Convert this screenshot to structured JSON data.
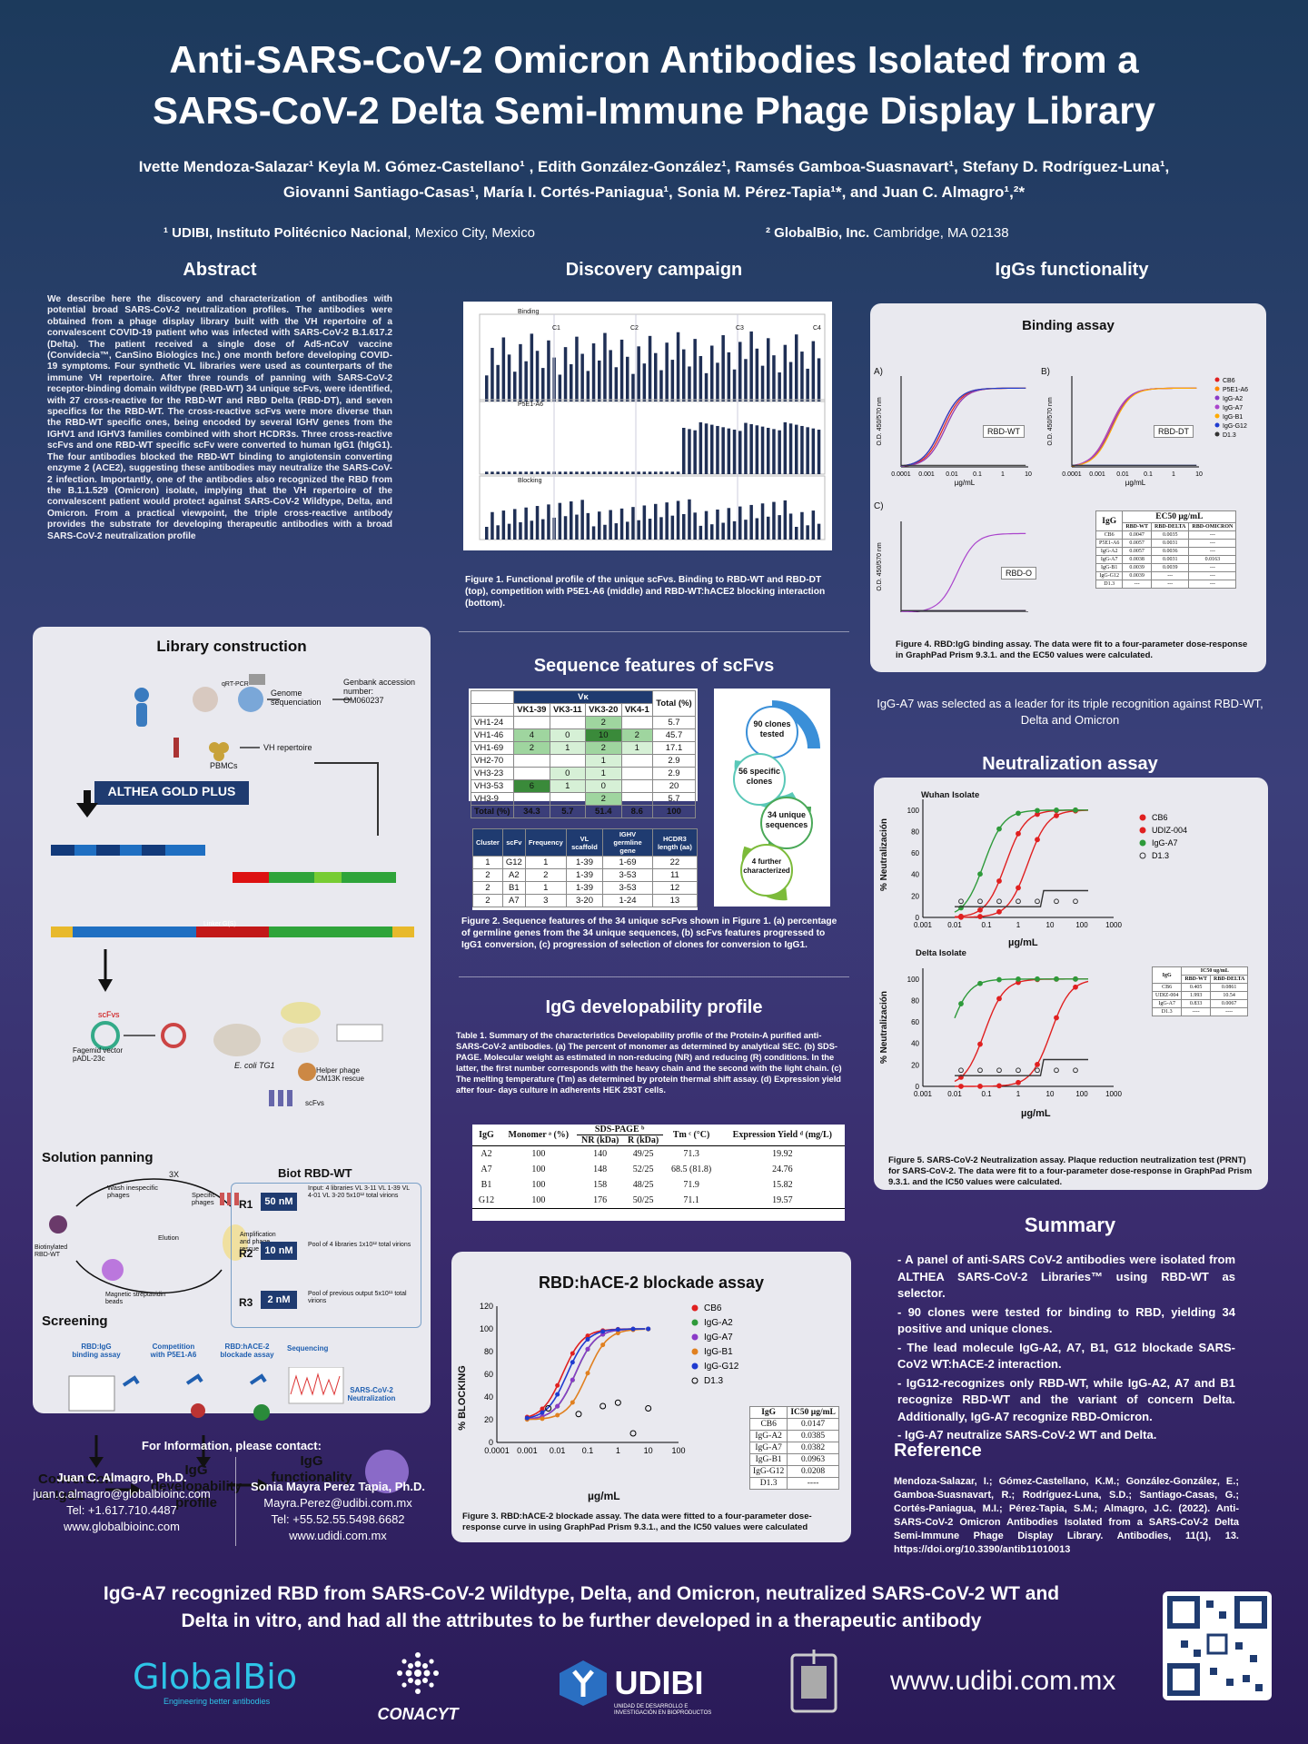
{
  "poster": {
    "title_line1": "Anti-SARS-CoV-2 Omicron Antibodies Isolated from a",
    "title_line2": "SARS-CoV-2 Delta Semi-Immune Phage Display Library",
    "authors_line1": "Ivette Mendoza-Salazar¹ Keyla M. Gómez-Castellano¹ , Edith González-González¹, Ramsés Gamboa-Suasnavart¹, Stefany D. Rodríguez-Luna¹,",
    "authors_line2": "Giovanni Santiago-Casas¹, María I. Cortés-Paniagua¹, Sonia M. Pérez-Tapia¹*, and Juan C. Almagro¹,²*",
    "affil1_bold": "¹ UDIBI, Instituto Politécnico Nacional",
    "affil1_rest": ", Mexico City, Mexico",
    "affil2_bold": "² GlobalBio, Inc.",
    "affil2_rest": " Cambridge, MA 02138"
  },
  "abstract": {
    "heading": "Abstract",
    "text": "We describe here the discovery and characterization of antibodies with potential broad SARS-CoV-2 neutralization profiles. The antibodies were obtained from a phage display library built with the VH repertoire of a convalescent COVID-19 patient who was infected with SARS-CoV-2 B.1.617.2 (Delta). The patient received a single dose of Ad5-nCoV vaccine (Convidecia™, CanSino Biologics Inc.) one month before developing COVID-19 symptoms. Four synthetic VL libraries were used as counterparts of the immune VH repertoire. After three rounds of panning with SARS-CoV-2 receptor-binding domain wildtype (RBD-WT) 34 unique scFvs, were identified, with 27 cross-reactive for the RBD-WT and RBD Delta (RBD-DT), and seven specifics for the RBD-WT. The cross-reactive scFvs were more diverse than the RBD-WT specific ones, being encoded by several IGHV genes from the IGHV1 and IGHV3 families combined with short HCDR3s. Three cross-reactive scFvs and one RBD-WT specific scFv were converted to human IgG1 (hIgG1). The four antibodies blocked the RBD-WT binding to angiotensin converting enzyme 2 (ACE2), suggesting these antibodies may neutralize the SARS-CoV-2 infection. Importantly, one of the antibodies also recognized the RBD from the B.1.1.529 (Omicron) isolate, implying that the VH repertoire of the convalescent patient would protect against SARS-CoV-2 Wildtype, Delta, and Omicron. From a practical viewpoint, the triple cross-reactive antibody provides the substrate for developing therapeutic antibodies with a broad SARS-CoV-2 neutralization profile"
  },
  "library": {
    "heading": "Library construction",
    "genome_seq": "Genome sequenciation",
    "genbank": "Genbank accession number: OM060237",
    "pbmcs": "PBMCs",
    "qrt": "qRT-PCR",
    "vh_rep": "VH repertoire",
    "althea": "ALTHEA GOLD PLUS",
    "linker": "Linker G(S)",
    "scfvs": "scFvs",
    "fagemid": "Fagemid vector pADL-23c",
    "ecoli": "E. coli TG1",
    "helper": "Helper phage CM13K rescue",
    "scfvs_end": "scFvs",
    "panning_heading": "Solution panning",
    "times": "3X",
    "wash": "Wash inespecific phages",
    "elution": "Elution",
    "specific": "Specific phages",
    "amplification": "Amplification and phage rescue",
    "biotin": "Biotinylated RBD-WT",
    "beads": "Magnetic streptavidin beads",
    "biot_heading": "Biot RBD-WT",
    "rounds": [
      {
        "r": "R1",
        "conc": "50 nM",
        "note": "Input: 4 libraries VL 3-11 VL 1-39 VL 4-01 VL 3-20 5x10¹² total virions"
      },
      {
        "r": "R2",
        "conc": "10 nM",
        "note": "Pool of 4 libraries 1x10¹² total virions"
      },
      {
        "r": "R3",
        "conc": "2 nM",
        "note": "Pool of previous output 5x10¹¹ total virions"
      }
    ],
    "screening_heading": "Screening",
    "screen_items": [
      "RBD:IgG binding assay",
      "Competition with P5E1-A6",
      "RBD:hACE-2 blockade assay",
      "Sequencing",
      "SARS-CoV-2 Neutralization"
    ],
    "conversion": "Conversion to IgG1",
    "developability": "IgG developability profile",
    "functionality": "IgG functionality"
  },
  "contact": {
    "heading": "For Information, please contact:",
    "p1_name": "Juan C. Almagro, Ph.D.",
    "p1_email": "juan.c.almagro@globalbioinc.com",
    "p1_tel": "Tel: +1.617.710.4487",
    "p1_web": "www.globalbioinc.com",
    "p2_name": "Sonia Mayra Perez Tapia, Ph.D.",
    "p2_email": "Mayra.Perez@udibi.com.mx",
    "p2_tel": "Tel: +55.52.55.5498.6682",
    "p2_web": "www.udidi.com.mx"
  },
  "discovery": {
    "heading": "Discovery campaign",
    "panels": [
      "Binding",
      "P5E1-A6",
      "Blocking"
    ],
    "groups": [
      "C1",
      "C2",
      "C3",
      "C4"
    ],
    "caption": "Figure 1. Functional profile of the unique scFvs. Binding to RBD-WT and RBD-DT (top), competition with P5E1-A6 (middle) and RBD-WT:hACE2 blocking interaction (bottom)."
  },
  "sequence": {
    "heading": "Sequence features of scFvs",
    "vk_header": "Vκ",
    "cols": [
      "VK1-39",
      "VK3-11",
      "VK3-20",
      "VK4-1",
      "Total (%)"
    ],
    "rows": [
      [
        "VH1-24",
        "",
        "",
        "2",
        "",
        "5.7"
      ],
      [
        "VH1-46",
        "4",
        "0",
        "10",
        "2",
        "45.7"
      ],
      [
        "VH1-69",
        "2",
        "1",
        "2",
        "1",
        "17.1"
      ],
      [
        "VH2-70",
        "",
        "",
        "1",
        "",
        "2.9"
      ],
      [
        "VH3-23",
        "",
        "0",
        "1",
        "",
        "2.9"
      ],
      [
        "VH3-53",
        "6",
        "1",
        "0",
        "",
        "20"
      ],
      [
        "VH3-9",
        "",
        "",
        "2",
        "",
        "5.7"
      ],
      [
        "Total (%)",
        "34.3",
        "5.7",
        "51.4",
        "8.6",
        "100"
      ]
    ],
    "t2_cols": [
      "Cluster",
      "scFv",
      "Frequency",
      "VL scaffold",
      "IGHV germline gene",
      "HCDR3 length (aa)"
    ],
    "t2_rows": [
      [
        "1",
        "G12",
        "1",
        "1-39",
        "1-69",
        "22"
      ],
      [
        "2",
        "A2",
        "2",
        "1-39",
        "3-53",
        "11"
      ],
      [
        "2",
        "B1",
        "1",
        "1-39",
        "3-53",
        "12"
      ],
      [
        "2",
        "A7",
        "3",
        "3-20",
        "1-24",
        "13"
      ]
    ],
    "cycle": [
      "90 clones tested",
      "56 specific clones",
      "34 unique sequences",
      "4 further characterized"
    ],
    "caption": "Figure 2. Sequence features of the 34 unique scFvs shown in Figure 1. (a) percentage of germline genes from the 34 unique sequences, (b) scFvs features progressed to IgG1 conversion, (c) progression of selection of clones for conversion to IgG1."
  },
  "developability": {
    "heading": "IgG developability profile",
    "caption": "Table 1. Summary of the characteristics Developability profile of the Protein-A purified anti-SARS-CoV-2 antibodies. (a) The percent of monomer as determined by analytical SEC. (b) SDS-PAGE. Molecular weight as estimated in non-reducing (NR) and reducing (R) conditions. In the latter, the first number corresponds with the heavy chain and the second with the light chain. (c) The melting temperature (Tm) as determined by protein thermal shift assay. (d) Expression yield after four- days culture in adherents HEK 293T cells.",
    "cols": [
      "IgG",
      "Monomer ᵃ (%)",
      "SDS-PAGE ᵇ",
      "NR (kDa)",
      "R (kDa)",
      "Tm ᶜ (°C)",
      "Expression Yield ᵈ (mg/L)"
    ],
    "rows": [
      [
        "A2",
        "100",
        "140",
        "49/25",
        "71.3",
        "19.92"
      ],
      [
        "A7",
        "100",
        "148",
        "52/25",
        "68.5 (81.8)",
        "24.76"
      ],
      [
        "B1",
        "100",
        "158",
        "48/25",
        "71.9",
        "15.82"
      ],
      [
        "G12",
        "100",
        "176",
        "50/25",
        "71.1",
        "19.57"
      ]
    ]
  },
  "blockade": {
    "heading": "RBD:hACE-2 blockade assay",
    "ylabel": "% BLOCKING",
    "xlabel": "µg/mL",
    "legend": [
      "CB6",
      "IgG-A2",
      "IgG-A7",
      "IgG-B1",
      "IgG-G12",
      "D1.3"
    ],
    "ic_head": [
      "IgG",
      "IC50 µg/mL"
    ],
    "ic_rows": [
      [
        "CB6",
        "0.0147"
      ],
      [
        "IgG-A2",
        "0.0385"
      ],
      [
        "IgG-A7",
        "0.0382"
      ],
      [
        "IgG-B1",
        "0.0963"
      ],
      [
        "IgG-G12",
        "0.0208"
      ],
      [
        "D1.3",
        "----"
      ]
    ],
    "caption": "Figure 3. RBD:hACE-2 blockade assay. The data were fitted to a four-parameter dose-response curve in using GraphPad Prism 9.3.1., and the IC50 values were calculated"
  },
  "functionality": {
    "heading": "IgGs functionality",
    "binding_heading": "Binding assay",
    "ylabel": "O.D. 450/570 nm",
    "xlabel": "µg/mL",
    "labels": [
      "RBD-WT",
      "RBD-DT",
      "RBD-O"
    ],
    "panel_letters": [
      "A)",
      "B)",
      "C)"
    ],
    "legend": [
      "CB6",
      "P5E1-A6",
      "IgG-A2",
      "IgG-A7",
      "IgG-B1",
      "IgG-G12",
      "D1.3"
    ],
    "ec_head": [
      "IgG",
      "EC50 µg/mL",
      "RBD-WT",
      "RBD-DELTA",
      "RBD-OMICRON"
    ],
    "ec_rows": [
      [
        "CB6",
        "0.0047",
        "0.0035",
        "---"
      ],
      [
        "P5E1-A6",
        "0.0057",
        "0.0031",
        "---"
      ],
      [
        "IgG-A2",
        "0.0057",
        "0.0036",
        "---"
      ],
      [
        "IgG-A7",
        "0.0038",
        "0.0031",
        "0.0163"
      ],
      [
        "IgG-B1",
        "0.0039",
        "0.0039",
        "---"
      ],
      [
        "IgG-G12",
        "0.0039",
        "---",
        "---"
      ],
      [
        "D1.3",
        "---",
        "---",
        "---"
      ]
    ],
    "caption": "Figure 4. RBD:IgG binding assay. The data were fit to a four-parameter dose-response in GraphPad Prism 9.3.1. and the EC50 values were calculated.",
    "leader": "IgG-A7 was selected as a leader for its triple recognition against RBD-WT, Delta and Omicron"
  },
  "neutralization": {
    "heading": "Neutralization assay",
    "wuhan": "Wuhan Isolate",
    "delta": "Delta Isolate",
    "ylabel": "% Neutralización",
    "xlabel": "µg/mL",
    "legend": [
      "CB6",
      "UDIZ-004",
      "IgG-A7",
      "D1.3"
    ],
    "ic_head": [
      "IgG",
      "IC50 ug/mL",
      "RBD-WT",
      "RBD-DELTA"
    ],
    "ic_rows": [
      [
        "CB6",
        "0.405",
        "0.0861"
      ],
      [
        "UDIZ-004",
        "1.993",
        "10.54"
      ],
      [
        "IgG-A7",
        "0.833",
        "0.0067"
      ],
      [
        "D1.3",
        "----",
        "----"
      ]
    ],
    "caption": "Figure 5. SARS-CoV-2 Neutralization assay. Plaque reduction neutralization test (PRNT) for SARS-CoV-2. The data were fit to a four-parameter dose-response in GraphPad Prism 9.3.1. and the IC50 values were calculated."
  },
  "summary": {
    "heading": "Summary",
    "items": [
      "A panel of anti-SARS CoV-2 antibodies were isolated from ALTHEA SARS-CoV-2 Libraries™ using RBD-WT as selector.",
      "90 clones were tested for binding to RBD, yielding 34 positive and unique clones.",
      "The lead molecule IgG-A2, A7, B1, G12 blockade SARS-CoV2 WT:hACE-2 interaction.",
      "IgG12-recognizes only RBD-WT, while IgG-A2, A7 and B1 recognize RBD-WT and the variant of concern Delta. Additionally, IgG-A7 recognize RBD-Omicron.",
      "IgG-A7 neutralize SARS-CoV-2 WT and Delta."
    ]
  },
  "reference": {
    "heading": "Reference",
    "text": "Mendoza-Salazar, I.; Gómez-Castellano, K.M.; González-González, E.; Gamboa-Suasnavart, R.; Rodríguez-Luna, S.D.; Santiago-Casas, G.; Cortés-Paniagua, M.I.; Pérez-Tapia, S.M.; Almagro, J.C. (2022). Anti-SARS-CoV-2 Omicron Antibodies Isolated from a SARS-CoV-2 Delta Semi-Immune Phage Display Library. Antibodies, 11(1), 13. https://doi.org/10.3390/antib11010013"
  },
  "footer": {
    "conclusion_line1": "IgG-A7 recognized RBD from SARS-CoV-2 Wildtype, Delta, and Omicron, neutralized SARS-CoV-2 WT and",
    "conclusion_line2": "Delta in vitro, and had all the attributes to be further developed in a therapeutic antibody",
    "globalbio": "GlobalBio",
    "globalbio_tag": "Engineering better antibodies",
    "conacyt": "CONACYT",
    "udibi": "UDIBI",
    "udibi_sub": "UNIDAD DE DESARROLLO E INVESTIGACIÓN EN BIOPRODUCTOS",
    "website": "www.udibi.com.mx"
  },
  "colors": {
    "accent_green": "#2e8b57",
    "dark_navy": "#1f3b70",
    "red": "#e02020"
  }
}
